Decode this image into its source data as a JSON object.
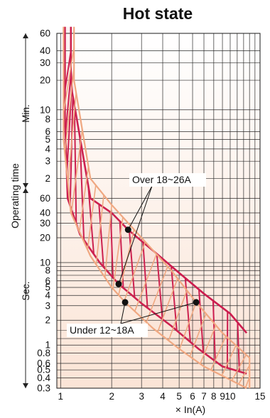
{
  "chart_data": {
    "type": "area",
    "title": "Hot state",
    "xlabel": "× In(A)",
    "ylabel": "Operating time",
    "x_scale": "log",
    "y_scale": "log",
    "xlim": [
      0.95,
      15
    ],
    "x_ticks": [
      1,
      2,
      3,
      4,
      5,
      6,
      7,
      8,
      9,
      10,
      15
    ],
    "x_tick_labels": [
      "1",
      "2",
      "3",
      "4",
      "5",
      "6",
      "7",
      "8",
      "9",
      "10",
      "15"
    ],
    "y_segments": [
      {
        "unit_label": "Min.",
        "ticks": [
          60,
          40,
          30,
          20,
          10,
          8,
          6,
          5,
          4,
          3,
          2
        ]
      },
      {
        "unit_label": "Sec.",
        "ticks": [
          60,
          40,
          30,
          20,
          10,
          8,
          6,
          5,
          4,
          3,
          2,
          1,
          0.8,
          0.6,
          0.5,
          0.4,
          0.3
        ]
      }
    ],
    "annotations": [
      {
        "text": "Over 18~26A",
        "points": [
          {
            "x": 2.5,
            "y_sec": 25
          },
          {
            "x": 2.2,
            "y_sec": 5.5
          }
        ]
      },
      {
        "text": "Under 12~18A",
        "points": [
          {
            "x": 2.4,
            "y_sec": 3.3
          },
          {
            "x": 6.3,
            "y_sec": 3.3
          }
        ]
      }
    ],
    "series": [
      {
        "name": "Over 18~26A",
        "color": "#cc1d4f",
        "upper": {
          "x": [
            1.15,
            1.15,
            1.17,
            1.22,
            1.5,
            2.0,
            2.5,
            3.5,
            5.0,
            7.0,
            10.0,
            12.5
          ],
          "y_sec": [
            4200,
            1500,
            900,
            600,
            60,
            40,
            25,
            14,
            7.5,
            4.2,
            2.4,
            1.4
          ]
        },
        "lower": {
          "x": [
            1.06,
            1.06,
            1.1,
            1.3,
            1.7,
            2.2,
            3.0,
            4.5,
            6.5,
            9.0,
            12.5
          ],
          "y_sec": [
            4200,
            500,
            60,
            22,
            10,
            5.5,
            3.2,
            1.7,
            0.9,
            0.55,
            0.45
          ]
        }
      },
      {
        "name": "Under 12~18A",
        "color": "#f0a882",
        "upper": {
          "x": [
            1.2,
            1.2,
            1.5,
            2.0,
            3.0,
            4.5,
            6.3,
            9.0,
            13.0,
            13.0
          ],
          "y_sec": [
            4200,
            1200,
            120,
            50,
            20,
            8,
            3.3,
            1.4,
            0.7,
            0.3
          ]
        },
        "lower": {
          "x": [
            1.04,
            1.04,
            1.15,
            1.5,
            2.0,
            2.4,
            3.5,
            5.0,
            7.0,
            10.0,
            12.5
          ],
          "y_sec": [
            4200,
            300,
            40,
            12,
            5.0,
            3.3,
            1.6,
            0.9,
            0.55,
            0.38,
            0.3
          ]
        }
      }
    ]
  }
}
